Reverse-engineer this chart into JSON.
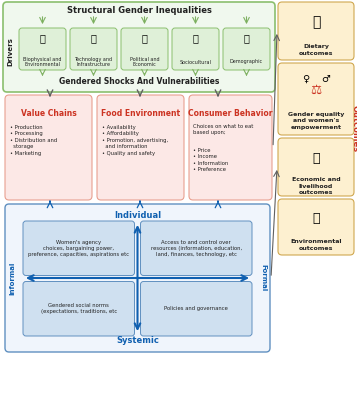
{
  "title_top": "Structural Gender Inequalities",
  "title_shocks": "Gendered Shocks And Vulnerabilities",
  "drivers_label": "Drivers",
  "drivers": [
    {
      "label": "Biophysical and\nEnvironmental"
    },
    {
      "label": "Technology and\nInfrastructure"
    },
    {
      "label": "Political and\nEconomic"
    },
    {
      "label": "Sociocultural"
    },
    {
      "label": "Demographic"
    }
  ],
  "value_chains_title": "Value Chains",
  "food_env_title": "Food Environment",
  "consumer_title": "Consumer Behavior",
  "consumer_intro": "Choices on what to eat\nbased upon;",
  "consumer_items": "• Price\n• Income\n• Information\n• Preference",
  "value_chains_items": "• Production\n• Processing\n• Distribution and\n  storage\n• Marketing",
  "food_env_items": "• Availability\n• Affordability\n• Promotion, advertising,\n  and information\n• Quality and safety",
  "individual_label": "Individual",
  "systemic_label": "Systemic",
  "informal_label": "Informal",
  "formal_label": "Formal",
  "box_tl": "Women's agency\nchoices, bargaining power,\npreference, capacities, aspirations etc",
  "box_tr": "Access to and control over\nresources (information, education,\nland, finances, technology, etc",
  "box_bl": "Gendered social norms\n(expectations, traditions, etc",
  "box_br": "Policies and governance",
  "outcomes_label": "Outcomes",
  "out_labels": [
    "Dietary\noutcomes",
    "Gender equality\nand women's\nempowerment",
    "Economic and\nlivelihood\noutcomes",
    "Environmental\noutcomes"
  ],
  "bg_color": "#ffffff",
  "drivers_outer_bg": "#f0f8ee",
  "drivers_border": "#8bbf6e",
  "driver_box_bg": "#dff0d8",
  "driver_box_border": "#8bbf6e",
  "pink_bg": "#fce8e6",
  "pink_border": "#e8a090",
  "blue_frame_bg": "#f0f5fc",
  "blue_frame_border": "#6090c0",
  "blue_box_bg": "#cfe0f0",
  "blue_box_border": "#6090c0",
  "blue_arrow": "#1060b0",
  "outcome_bg": "#fdf0d0",
  "outcome_border": "#d0a850",
  "red_text": "#cc3322",
  "blue_text": "#1060b0",
  "dark_text": "#222222",
  "outcomes_red": "#cc3322",
  "green_arrow_color": "#7db060",
  "grey_arrow": "#606060"
}
